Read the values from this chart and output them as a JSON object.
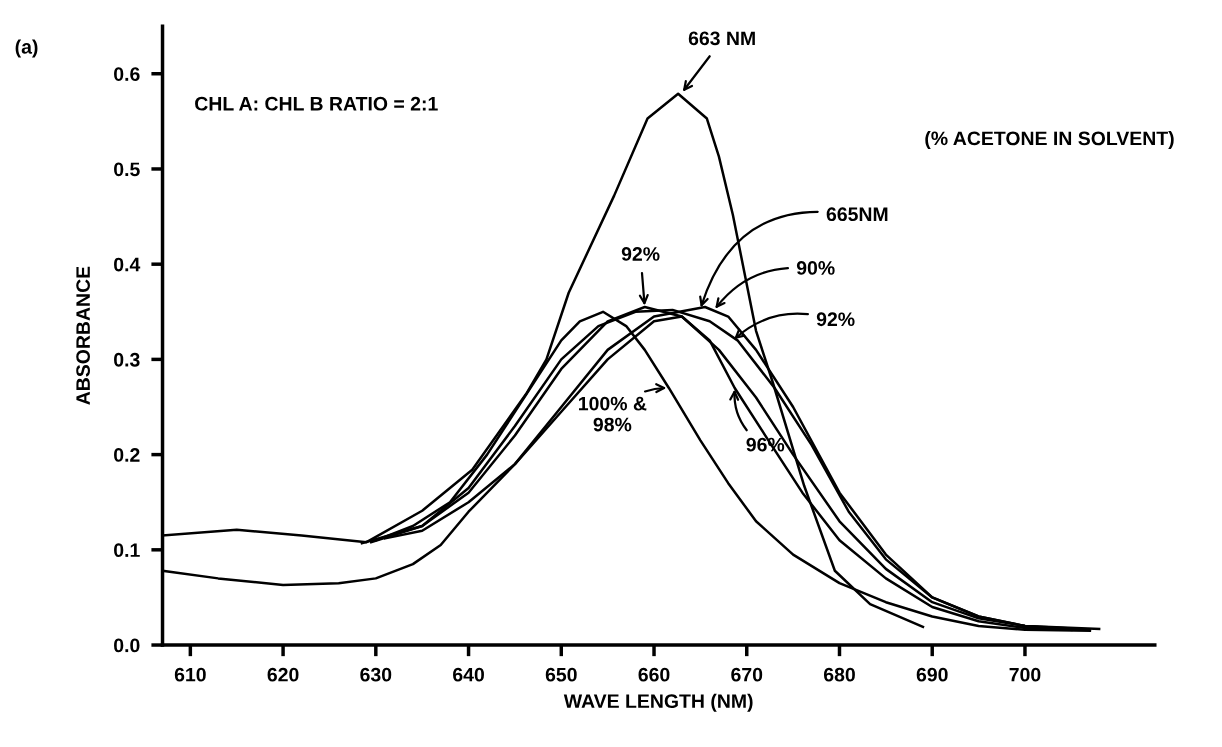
{
  "chart_data": {
    "type": "line",
    "xlabel": "WAVE LENGTH (NM)",
    "ylabel": "ABSORBANCE",
    "xlim": [
      607,
      714
    ],
    "ylim": [
      0,
      0.65
    ],
    "xticks": [
      610,
      620,
      630,
      640,
      650,
      660,
      670,
      680,
      690,
      700
    ],
    "yticks": [
      {
        "value": 0,
        "label": "0.0"
      },
      0.1,
      0.2,
      0.3,
      0.4,
      0.5,
      0.6
    ],
    "grid": false,
    "marker": "none",
    "line_style": "solid",
    "series": [
      {
        "color": "#000000",
        "x": [
          607,
          615,
          622,
          629,
          635,
          640.4,
          646.3,
          648.4,
          650.8,
          655.7,
          659.3,
          662.6,
          665.7,
          667,
          668.5,
          671,
          672.8,
          676.2,
          679.5,
          683.3,
          689
        ],
        "values": [
          0.115,
          0.121,
          0.115,
          0.108,
          0.141,
          0.184,
          0.265,
          0.3,
          0.37,
          0.472,
          0.553,
          0.579,
          0.553,
          0.513,
          0.452,
          0.33,
          0.276,
          0.167,
          0.078,
          0.043,
          0.019
        ]
      },
      {
        "color": "#000000",
        "x": [
          630,
          634,
          638,
          642,
          646,
          650,
          652,
          654.5,
          657,
          659,
          661.6,
          665,
          668,
          671,
          675,
          680,
          685,
          690,
          695,
          700,
          707
        ],
        "values": [
          0.11,
          0.125,
          0.15,
          0.2,
          0.26,
          0.32,
          0.34,
          0.35,
          0.335,
          0.31,
          0.27,
          0.215,
          0.17,
          0.13,
          0.095,
          0.065,
          0.045,
          0.03,
          0.02,
          0.016,
          0.015
        ]
      },
      {
        "color": "#000000",
        "x": [
          628.5,
          635,
          640,
          645,
          650,
          655,
          659,
          663,
          667,
          671,
          675,
          680,
          685,
          690,
          695,
          700,
          706
        ],
        "values": [
          0.107,
          0.125,
          0.16,
          0.22,
          0.29,
          0.34,
          0.355,
          0.345,
          0.31,
          0.26,
          0.2,
          0.13,
          0.08,
          0.045,
          0.028,
          0.02,
          0.017
        ]
      },
      {
        "color": "#000000",
        "x": [
          631,
          635,
          640,
          645,
          650,
          655,
          660,
          665.5,
          668,
          671,
          675,
          680,
          685,
          690,
          695,
          700,
          708
        ],
        "values": [
          0.112,
          0.12,
          0.15,
          0.19,
          0.25,
          0.31,
          0.345,
          0.355,
          0.345,
          0.31,
          0.25,
          0.16,
          0.095,
          0.05,
          0.03,
          0.02,
          0.017
        ]
      },
      {
        "color": "#000000",
        "x": [
          629.5,
          635,
          640,
          645,
          650,
          654,
          658,
          662,
          666,
          669,
          673,
          677,
          681,
          685,
          690,
          695,
          700,
          705
        ],
        "values": [
          0.108,
          0.125,
          0.165,
          0.23,
          0.3,
          0.335,
          0.35,
          0.352,
          0.34,
          0.32,
          0.27,
          0.21,
          0.14,
          0.09,
          0.05,
          0.03,
          0.02,
          0.016
        ]
      },
      {
        "color": "#000000",
        "x": [
          607,
          613,
          620,
          626,
          630,
          634,
          637,
          640,
          645,
          650,
          655,
          660,
          663,
          666,
          668.7,
          672,
          676,
          680,
          685,
          690,
          695,
          700,
          707
        ],
        "values": [
          0.078,
          0.07,
          0.063,
          0.065,
          0.07,
          0.085,
          0.105,
          0.14,
          0.19,
          0.245,
          0.3,
          0.34,
          0.345,
          0.32,
          0.27,
          0.22,
          0.16,
          0.11,
          0.07,
          0.04,
          0.025,
          0.018,
          0.016
        ]
      }
    ],
    "annotations": [
      "(a)",
      "CHL A: CHL B RATIO = 2:1",
      "(% ACETONE IN SOLVENT)",
      {
        "text": "663 NM",
        "x": 663,
        "y": 0.58
      },
      {
        "text": "92%",
        "x": 659,
        "y": 0.355
      },
      {
        "text": "665NM",
        "x": 665,
        "y": 0.353
      },
      {
        "text": "90%",
        "x": 666.5,
        "y": 0.352
      },
      {
        "text": "92%",
        "x": 668.5,
        "y": 0.32
      },
      {
        "text": "100% &\n98%",
        "x": 661.5,
        "y": 0.27
      },
      {
        "text": "96%",
        "x": 668.7,
        "y": 0.27
      }
    ]
  }
}
